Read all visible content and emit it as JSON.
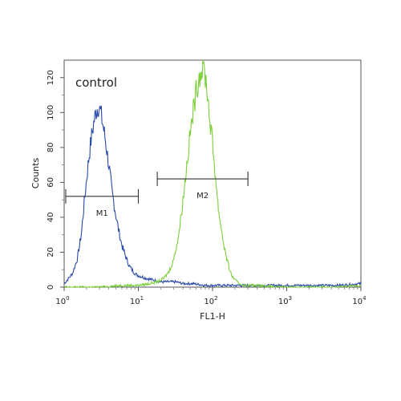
{
  "chart_data": {
    "type": "line",
    "annotation": "control",
    "xlabel": "FL1-H",
    "ylabel": "Counts",
    "x_scale": "log",
    "xlim": [
      1,
      10000
    ],
    "ylim": [
      0,
      130
    ],
    "x_ticks": [
      {
        "value": 1,
        "base": "10",
        "exp": "0"
      },
      {
        "value": 10,
        "base": "10",
        "exp": "1"
      },
      {
        "value": 100,
        "base": "10",
        "exp": "2"
      },
      {
        "value": 1000,
        "base": "10",
        "exp": "3"
      },
      {
        "value": 10000,
        "base": "10",
        "exp": "4"
      }
    ],
    "y_ticks": [
      {
        "value": 0,
        "label": "0"
      },
      {
        "value": 20,
        "label": "20"
      },
      {
        "value": 40,
        "label": "40"
      },
      {
        "value": 60,
        "label": "60"
      },
      {
        "value": 80,
        "label": "80"
      },
      {
        "value": 100,
        "label": "100"
      },
      {
        "value": 120,
        "label": "120"
      }
    ],
    "grid": false,
    "series": [
      {
        "color": "#2a4aa8",
        "x": [
          1,
          1.1,
          1.3,
          1.5,
          1.7,
          1.9,
          2.1,
          2.3,
          2.5,
          2.7,
          2.9,
          3.1,
          3.3,
          3.6,
          4.0,
          4.4,
          4.9,
          5.4,
          6.0,
          6.8,
          7.6,
          8.5,
          9.5,
          11,
          13,
          16,
          20,
          25,
          32,
          40,
          55,
          80,
          150,
          300,
          600,
          1200,
          2500,
          5000,
          10000
        ],
        "y": [
          2,
          4,
          8,
          16,
          30,
          52,
          70,
          84,
          94,
          101,
          104,
          100,
          94,
          84,
          70,
          55,
          43,
          33,
          24,
          17,
          12,
          9,
          7,
          6,
          5,
          4,
          3,
          3,
          3,
          2,
          2,
          1,
          1,
          1,
          1,
          1,
          1,
          1,
          2
        ]
      },
      {
        "color": "#7ccf3a",
        "x": [
          1,
          3,
          6,
          10,
          14,
          18,
          22,
          26,
          30,
          35,
          40,
          45,
          50,
          55,
          60,
          65,
          70,
          75,
          80,
          85,
          90,
          100,
          110,
          120,
          135,
          150,
          165,
          180,
          200,
          230,
          270,
          330,
          450,
          700,
          1200,
          2500,
          5000,
          10000
        ],
        "y": [
          0,
          0,
          1,
          1,
          2,
          3,
          5,
          9,
          16,
          30,
          50,
          70,
          88,
          101,
          112,
          120,
          124,
          126,
          121,
          112,
          100,
          82,
          63,
          45,
          30,
          19,
          12,
          7,
          4,
          2,
          1,
          1,
          1,
          0,
          0,
          0,
          0,
          1
        ]
      }
    ],
    "gates": [
      {
        "label": "M1",
        "x_start": 1.05,
        "x_end": 10
      },
      {
        "label": "M2",
        "x_start": 18,
        "x_end": 300
      }
    ]
  }
}
